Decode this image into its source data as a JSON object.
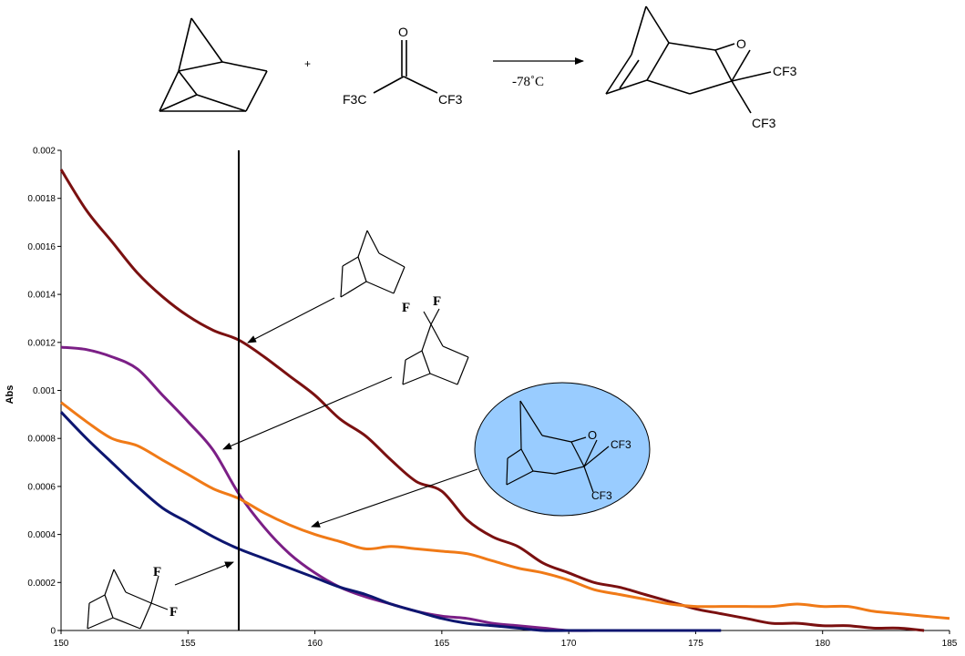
{
  "reaction": {
    "plus": "+",
    "condition": "-78˚C",
    "reagent": {
      "o": "O",
      "left": "F3C",
      "right": "CF3"
    },
    "product": {
      "o": "O",
      "cf3_a": "CF3",
      "cf3_b": "CF3"
    }
  },
  "annotations": {
    "difluoro_a": "F",
    "difluoro_b": "F",
    "exo_difluoro_a": "F",
    "exo_difluoro_b": "F",
    "bubble_o": "O",
    "bubble_cf3_a": "CF3",
    "bubble_cf3_b": "CF3"
  },
  "colors": {
    "norbornane": "#7a1010",
    "difluoro_7": "#7b1f86",
    "oxetane_adduct": "#f07a17",
    "difluoro_exo": "#0d1670",
    "highlight_fill": "#99ccff"
  },
  "chart_data": {
    "type": "line",
    "title": "",
    "xlabel": "",
    "ylabel": "Abs",
    "xlim": [
      150,
      185
    ],
    "ylim": [
      0,
      0.002
    ],
    "xticks": [
      "150",
      "155",
      "160",
      "165",
      "170",
      "175",
      "180",
      "185"
    ],
    "yticks": [
      "0",
      "0.0002",
      "0.0004",
      "0.0006",
      "0.0008",
      "0.001",
      "0.0012",
      "0.0014",
      "0.0016",
      "0.0018",
      "0.002"
    ],
    "vline": 157,
    "grid": false,
    "series": [
      {
        "key": "norbornane",
        "x": [
          150,
          151,
          152,
          153,
          154,
          155,
          156,
          157,
          158,
          159,
          160,
          161,
          162,
          163,
          164,
          165,
          166,
          167,
          168,
          169,
          170,
          171,
          172,
          173,
          174,
          175,
          176,
          177,
          178,
          179,
          180,
          181,
          182,
          183,
          184
        ],
        "y": [
          0.00192,
          0.00175,
          0.00162,
          0.00149,
          0.00139,
          0.00131,
          0.00125,
          0.00121,
          0.00114,
          0.00106,
          0.00098,
          0.00088,
          0.00081,
          0.00071,
          0.00062,
          0.00058,
          0.00046,
          0.00039,
          0.00035,
          0.00028,
          0.00024,
          0.0002,
          0.00018,
          0.00015,
          0.00012,
          9e-05,
          7e-05,
          5e-05,
          3e-05,
          3e-05,
          2e-05,
          2e-05,
          1e-05,
          1e-05,
          0.0
        ]
      },
      {
        "key": "difluoro_7",
        "x": [
          150,
          151,
          152,
          153,
          154,
          155,
          156,
          157,
          158,
          159,
          160,
          161,
          162,
          163,
          164,
          165,
          166,
          167,
          168,
          169,
          170,
          171,
          172
        ],
        "y": [
          0.00118,
          0.00117,
          0.00114,
          0.00109,
          0.00098,
          0.00087,
          0.00075,
          0.00057,
          0.00043,
          0.00032,
          0.00024,
          0.00018,
          0.00014,
          0.00011,
          8e-05,
          6e-05,
          5e-05,
          3e-05,
          2e-05,
          1e-05,
          0.0,
          0.0,
          0.0
        ]
      },
      {
        "key": "oxetane_adduct",
        "x": [
          150,
          151,
          152,
          153,
          154,
          155,
          156,
          157,
          158,
          159,
          160,
          161,
          162,
          163,
          164,
          165,
          166,
          167,
          168,
          169,
          170,
          171,
          172,
          173,
          174,
          175,
          176,
          177,
          178,
          179,
          180,
          181,
          182,
          183,
          184,
          185
        ],
        "y": [
          0.00095,
          0.00087,
          0.0008,
          0.00077,
          0.00071,
          0.00065,
          0.00059,
          0.00055,
          0.00049,
          0.00044,
          0.0004,
          0.00037,
          0.00034,
          0.00035,
          0.00034,
          0.00033,
          0.00032,
          0.00029,
          0.00026,
          0.00024,
          0.00021,
          0.00017,
          0.00015,
          0.00013,
          0.00011,
          0.0001,
          0.0001,
          0.0001,
          0.0001,
          0.00011,
          0.0001,
          0.0001,
          8e-05,
          7e-05,
          6e-05,
          5e-05
        ]
      },
      {
        "key": "difluoro_exo",
        "x": [
          150,
          151,
          152,
          153,
          154,
          155,
          156,
          157,
          158,
          159,
          160,
          161,
          162,
          163,
          164,
          165,
          166,
          167,
          168,
          169,
          170,
          171,
          172,
          173,
          174,
          175,
          176
        ],
        "y": [
          0.00091,
          0.0008,
          0.0007,
          0.0006,
          0.00051,
          0.00045,
          0.00039,
          0.00034,
          0.0003,
          0.00026,
          0.00022,
          0.00018,
          0.00015,
          0.00011,
          8e-05,
          5e-05,
          3e-05,
          2e-05,
          1e-05,
          0.0,
          0.0,
          0.0,
          0.0,
          0.0,
          0.0,
          0.0,
          0.0
        ]
      }
    ]
  }
}
